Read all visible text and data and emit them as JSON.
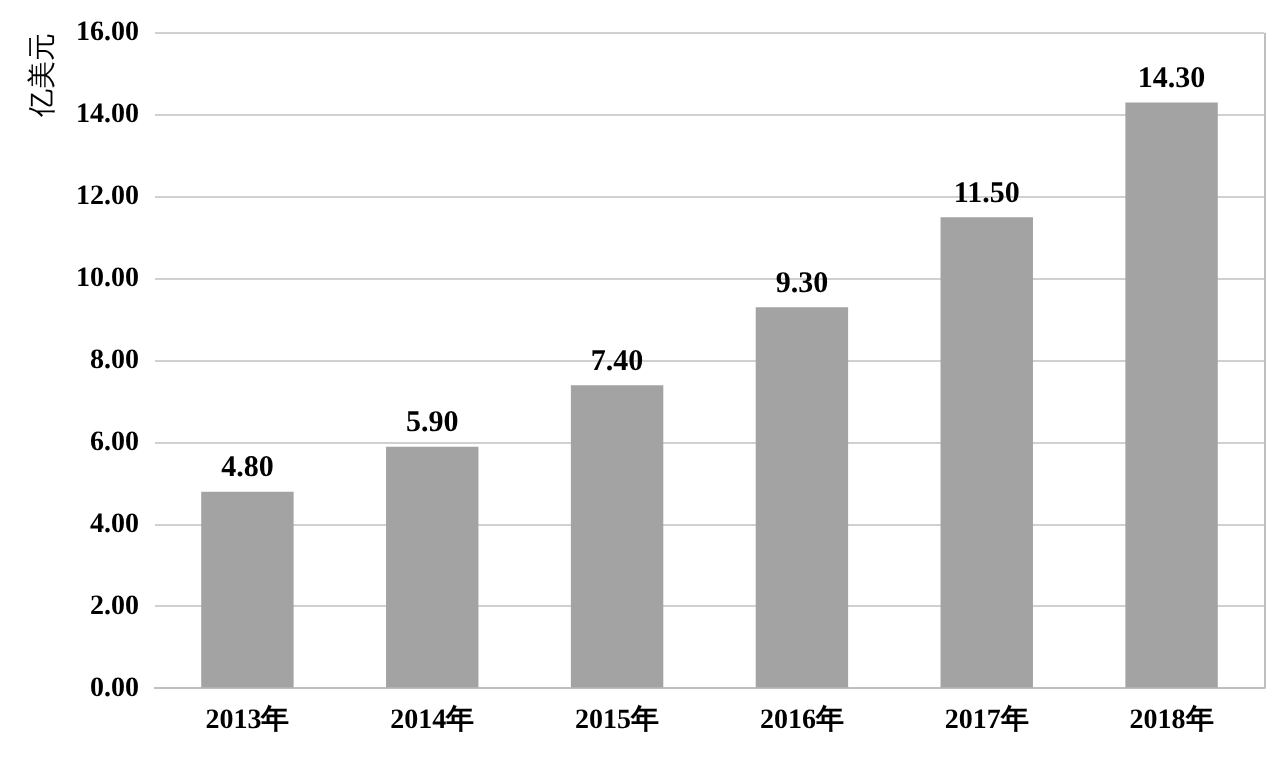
{
  "chart_data": {
    "type": "bar",
    "ylabel": "亿美元",
    "categories": [
      "2013年",
      "2014年",
      "2015年",
      "2016年",
      "2017年",
      "2018年"
    ],
    "values": [
      4.8,
      5.9,
      7.4,
      9.3,
      11.5,
      14.3
    ],
    "value_labels": [
      "4.80",
      "5.90",
      "7.40",
      "9.30",
      "11.50",
      "14.30"
    ],
    "color": "#a3a3a3",
    "ylim": [
      0,
      16
    ],
    "yticks": [
      {
        "value": 0,
        "label": "0.00"
      },
      {
        "value": 2,
        "label": "2.00"
      },
      {
        "value": 4,
        "label": "4.00"
      },
      {
        "value": 6,
        "label": "6.00"
      },
      {
        "value": 8,
        "label": "8.00"
      },
      {
        "value": 10,
        "label": "10.00"
      },
      {
        "value": 12,
        "label": "12.00"
      },
      {
        "value": 14,
        "label": "14.00"
      },
      {
        "value": 16,
        "label": "16.00"
      }
    ],
    "grid": "y",
    "legend": false
  }
}
